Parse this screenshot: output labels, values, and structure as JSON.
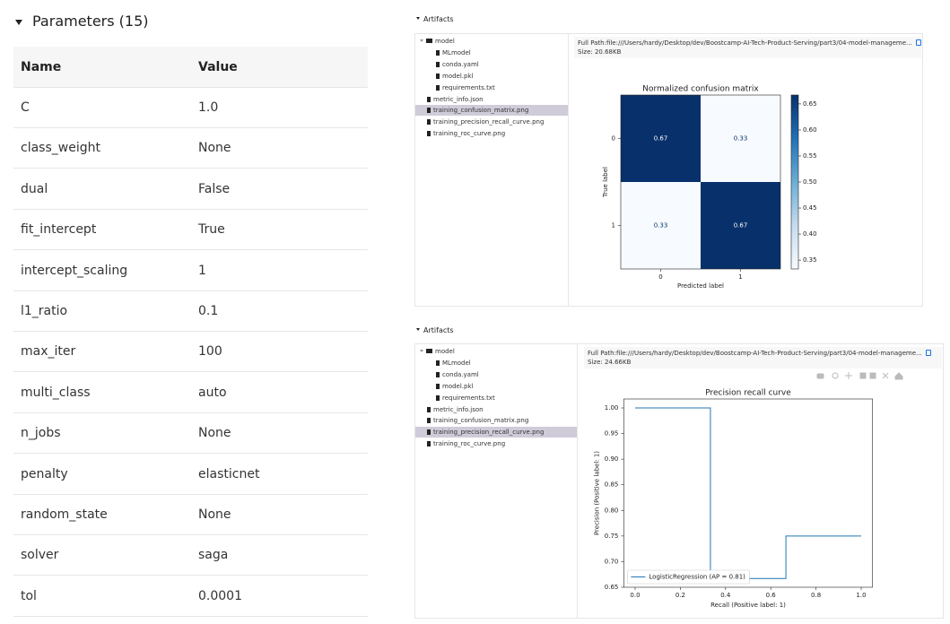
{
  "parameters": {
    "title": "Parameters (15)",
    "columns": [
      "Name",
      "Value"
    ],
    "rows": [
      [
        "C",
        "1.0"
      ],
      [
        "class_weight",
        "None"
      ],
      [
        "dual",
        "False"
      ],
      [
        "fit_intercept",
        "True"
      ],
      [
        "intercept_scaling",
        "1"
      ],
      [
        "l1_ratio",
        "0.1"
      ],
      [
        "max_iter",
        "100"
      ],
      [
        "multi_class",
        "auto"
      ],
      [
        "n_jobs",
        "None"
      ],
      [
        "penalty",
        "elasticnet"
      ],
      [
        "random_state",
        "None"
      ],
      [
        "solver",
        "saga"
      ],
      [
        "tol",
        "0.0001"
      ]
    ]
  },
  "artifacts": [
    {
      "title": "Artifacts",
      "tree": [
        {
          "name": "model",
          "children": [
            "MLmodel",
            "conda.yaml",
            "model.pkl",
            "requirements.txt"
          ]
        },
        "metric_info.json",
        "training_confusion_matrix.png",
        "training_precision_recall_curve.png",
        "training_roc_curve.png"
      ],
      "selected": 2,
      "full_path_label": "Full Path:",
      "full_path": "file:///Users/hardy/Desktop/dev/Boostcamp-AI-Tech-Product-Serving/part3/04-model-manageme...",
      "size": "Size: 20.68KB",
      "chart": {
        "type": "heatmap",
        "title": "Normalized confusion matrix",
        "x_categories": [
          "0",
          "1"
        ],
        "y_categories": [
          "0",
          "1"
        ],
        "values": [
          [
            0.67,
            0.33
          ],
          [
            0.33,
            0.67
          ]
        ],
        "x_label": "Predicted label",
        "y_label": "True label",
        "colors": [
          "#f7fbff",
          "#c6dbef",
          "#6baed6",
          "#2171b5",
          "#08306b"
        ],
        "clim": [
          0.333,
          0.667
        ],
        "cticks": [
          0.35,
          {
            "value": 0.4,
            "label": "0.40"
          },
          0.45,
          {
            "value": 0.5,
            "label": "0.50"
          },
          0.55,
          {
            "value": 0.6,
            "label": "0.60"
          },
          0.65
        ]
      }
    },
    {
      "title": "Artifacts",
      "tree": [
        {
          "name": "model",
          "children": [
            "MLmodel",
            "conda.yaml",
            "model.pkl",
            "requirements.txt"
          ]
        },
        "metric_info.json",
        "training_confusion_matrix.png",
        "training_precision_recall_curve.png",
        "training_roc_curve.png"
      ],
      "selected": 3,
      "full_path_label": "Full Path:",
      "full_path": "file:///Users/hardy/Desktop/dev/Boostcamp-AI-Tech-Product-Serving/part3/04-model-manageme...",
      "size": "Size: 24.66KB",
      "chart": {
        "type": "line",
        "title": "Precision recall curve",
        "x": [
          0,
          0.333,
          0.333,
          0.667,
          0.667,
          1.0
        ],
        "series": [
          {
            "name": "LogisticRegression (AP = 0.81)",
            "color": "#1f77b4",
            "values": [
              1.0,
              1.0,
              0.667,
              0.667,
              0.75,
              0.75
            ]
          }
        ],
        "x_label": "Recall (Positive label: 1)",
        "y_label": "Precision (Positive label: 1)",
        "xlim": [
          -0.05,
          1.05
        ],
        "ylim": [
          0.65,
          1.0175
        ],
        "xticks": [
          {
            "value": 0,
            "label": "0.0"
          },
          0.2,
          0.4,
          0.6,
          0.8,
          {
            "value": 1,
            "label": "1.0"
          }
        ],
        "yticks": [
          0.65,
          {
            "value": 0.7,
            "label": "0.70"
          },
          0.75,
          {
            "value": 0.8,
            "label": "0.80"
          },
          0.85,
          {
            "value": 0.9,
            "label": "0.90"
          },
          0.95,
          {
            "value": 1,
            "label": "1.00"
          }
        ],
        "legend": "lower left"
      }
    }
  ]
}
